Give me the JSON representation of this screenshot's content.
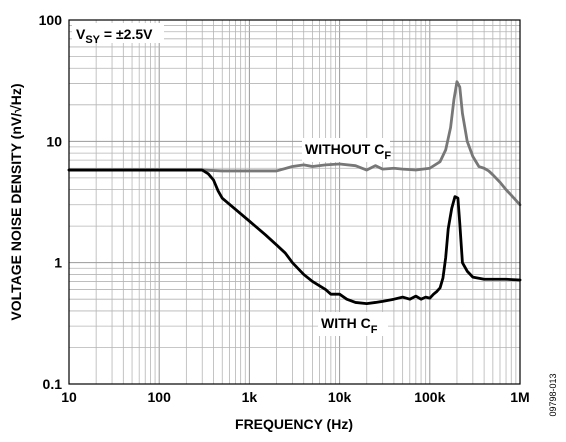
{
  "chart_data": {
    "type": "line",
    "title": "",
    "xlabel": "FREQUENCY (Hz)",
    "ylabel": "VOLTAGE NOISE DENSITY (nV/√Hz)",
    "x_scale": "log",
    "y_scale": "log",
    "xlim": [
      10,
      1000000
    ],
    "ylim": [
      0.1,
      100
    ],
    "grid": true,
    "x_ticks": [
      {
        "value": 10,
        "label": "10"
      },
      {
        "value": 100,
        "label": "100"
      },
      {
        "value": 1000,
        "label": "1k"
      },
      {
        "value": 10000,
        "label": "10k"
      },
      {
        "value": 100000,
        "label": "100k"
      },
      {
        "value": 1000000,
        "label": "1M"
      }
    ],
    "y_ticks": [
      {
        "value": 0.1,
        "label": "0.1"
      },
      {
        "value": 1,
        "label": "1"
      },
      {
        "value": 10,
        "label": "10"
      },
      {
        "value": 100,
        "label": "100"
      }
    ],
    "annotations": {
      "condition_main": "V",
      "condition_sub": "SY",
      "condition_rest": " = ±2.5V",
      "figure_id": "09798-013"
    },
    "series": [
      {
        "label_main": "WITHOUT C",
        "label_sub": "F",
        "color": "#777777",
        "x": [
          10,
          50,
          100,
          200,
          300,
          500,
          1000,
          2000,
          3000,
          4000,
          5000,
          7000,
          10000,
          15000,
          20000,
          25000,
          30000,
          40000,
          50000,
          70000,
          100000,
          130000,
          150000,
          170000,
          185000,
          200000,
          215000,
          230000,
          260000,
          300000,
          350000,
          400000,
          450000,
          500000,
          600000,
          700000,
          800000,
          1000000
        ],
        "y": [
          5.8,
          5.8,
          5.8,
          5.8,
          5.8,
          5.7,
          5.7,
          5.7,
          6.2,
          6.4,
          6.2,
          6.4,
          6.5,
          6.3,
          5.8,
          6.3,
          5.9,
          6.0,
          5.9,
          5.8,
          6.0,
          6.8,
          8.5,
          13,
          22,
          31,
          28,
          17,
          10,
          7.5,
          6.2,
          6.0,
          5.7,
          5.3,
          4.6,
          4.0,
          3.6,
          3.0
        ]
      },
      {
        "label_main": "WITH C",
        "label_sub": "F",
        "color": "#000000",
        "x": [
          10,
          50,
          100,
          200,
          300,
          350,
          400,
          450,
          500,
          700,
          1000,
          1500,
          2000,
          2500,
          3000,
          4000,
          5000,
          7000,
          8000,
          10000,
          12000,
          15000,
          20000,
          25000,
          30000,
          40000,
          50000,
          60000,
          70000,
          80000,
          90000,
          100000,
          110000,
          120000,
          130000,
          140000,
          150000,
          160000,
          175000,
          190000,
          205000,
          215000,
          230000,
          260000,
          300000,
          400000,
          500000,
          700000,
          1000000
        ],
        "y": [
          5.8,
          5.8,
          5.8,
          5.8,
          5.8,
          5.4,
          4.8,
          3.9,
          3.4,
          2.75,
          2.2,
          1.7,
          1.4,
          1.2,
          1.0,
          0.8,
          0.7,
          0.6,
          0.55,
          0.55,
          0.5,
          0.47,
          0.46,
          0.47,
          0.48,
          0.5,
          0.52,
          0.5,
          0.53,
          0.5,
          0.52,
          0.51,
          0.55,
          0.58,
          0.62,
          0.75,
          1.1,
          1.9,
          2.8,
          3.5,
          3.4,
          2.1,
          1.0,
          0.85,
          0.76,
          0.73,
          0.73,
          0.73,
          0.72
        ]
      }
    ]
  }
}
